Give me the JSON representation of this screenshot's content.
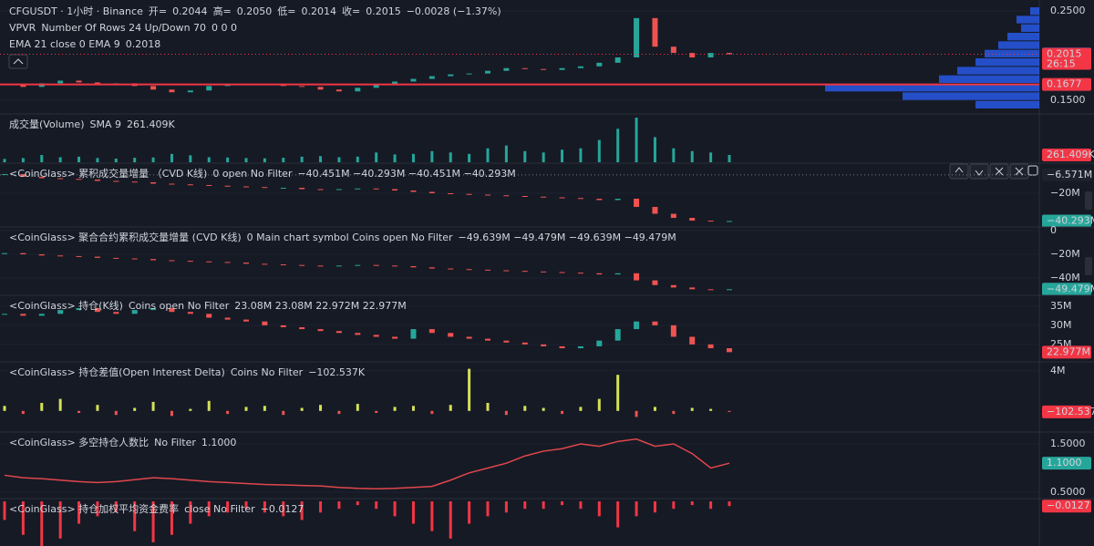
{
  "panes": [
    {
      "type": "candles",
      "ylim": [
        0.1378,
        0.2602
      ],
      "yticks": [
        {
          "value": 0.25,
          "label": "0.2500"
        },
        {
          "value": 0.15,
          "label": "0.1500"
        }
      ],
      "values": [
        0.168,
        0.165,
        0.169,
        0.172,
        0.17,
        0.168,
        0.169,
        0.166,
        0.162,
        0.159,
        0.161,
        0.166,
        0.168,
        0.167,
        0.168,
        0.166,
        0.165,
        0.162,
        0.16,
        0.164,
        0.168,
        0.171,
        0.174,
        0.177,
        0.179,
        0.18,
        0.183,
        0.186,
        0.185,
        0.184,
        0.186,
        0.188,
        0.192,
        0.198,
        0.242,
        0.21,
        0.203,
        0.198,
        0.203,
        0.2015
      ],
      "up_color": "#26a69a",
      "down_color": "#ef5350",
      "profile": [
        10,
        25,
        20,
        35,
        45,
        60,
        70,
        90,
        110,
        235,
        150,
        70
      ],
      "profile_color": "#2962ff",
      "legend": [
        [
          {
            "text": "CFGUSDT · 1小时 · Binance",
            "color": "#d1d4dc"
          },
          {
            "text": "开=",
            "color": "#d1d4dc"
          },
          {
            "text": "0.2044",
            "color": "#f23645"
          },
          {
            "text": "高=",
            "color": "#d1d4dc"
          },
          {
            "text": "0.2050",
            "color": "#f23645"
          },
          {
            "text": "低=",
            "color": "#d1d4dc"
          },
          {
            "text": "0.2014",
            "color": "#f23645"
          },
          {
            "text": "收=",
            "color": "#d1d4dc"
          },
          {
            "text": "0.2015",
            "color": "#f23645"
          },
          {
            "text": "−0.0028 (−1.37%)",
            "color": "#f23645"
          }
        ],
        [
          {
            "text": "VPVR",
            "color": "#d1d4dc"
          },
          {
            "text": "Number Of Rows 24 Up/Down 70",
            "color": "#9598a1"
          },
          {
            "text": "0 0 0",
            "color": "#d1d4dc"
          }
        ],
        [
          {
            "text": "EMA 21 close 0 EMA 9",
            "color": "#d1d4dc"
          },
          {
            "text": "0.2018",
            "color": "#2962ff"
          }
        ]
      ],
      "value_boxes": [
        {
          "value": 0.2018,
          "label": "0.2018",
          "color": "#2962ff"
        },
        {
          "value": 0.2015,
          "label": "0.2015",
          "sublabel": "26:15",
          "color": "#f23645",
          "line": "dotted"
        },
        {
          "value": 0.1677,
          "label": "0.1677",
          "color": "#f23645",
          "line": "solid"
        }
      ]
    },
    {
      "type": "bars",
      "ylim": [
        0,
        1700
      ],
      "yticks": [],
      "color": "#26a69a",
      "values": [
        120,
        150,
        260,
        180,
        200,
        150,
        130,
        160,
        170,
        300,
        250,
        180,
        170,
        150,
        140,
        160,
        200,
        220,
        180,
        200,
        350,
        280,
        300,
        400,
        350,
        300,
        500,
        600,
        400,
        350,
        450,
        500,
        800,
        1200,
        1600,
        900,
        500,
        400,
        350,
        261.409
      ],
      "legend": [
        [
          {
            "text": "成交量(Volume)",
            "color": "#d1d4dc"
          },
          {
            "text": "SMA 9",
            "color": "#9598a1"
          },
          {
            "text": "261.409K",
            "color": "#f23645"
          }
        ]
      ],
      "value_boxes": [
        {
          "value": 261.409,
          "label": "261.409K",
          "color": "#f23645"
        }
      ]
    },
    {
      "type": "candles",
      "ylim": [
        -45.3,
        1.3
      ],
      "yticks": [
        {
          "value": -20,
          "label": "−20M"
        }
      ],
      "up_color": "#26a69a",
      "down_color": "#ef5350",
      "values": [
        -6,
        -8,
        -9,
        -9.5,
        -10,
        -11,
        -11.5,
        -12,
        -13,
        -13.5,
        -14,
        -14.5,
        -15,
        -15.5,
        -16,
        -16,
        -17,
        -17.5,
        -17,
        -16.5,
        -17,
        -18,
        -19,
        -20,
        -20.5,
        -21,
        -21.5,
        -22,
        -22.5,
        -23,
        -23.5,
        -24,
        -25,
        -24,
        -30,
        -35,
        -38,
        -40,
        -40.5,
        -40.293
      ],
      "legend": [
        [
          {
            "text": "<CoinGlass> 累积成交量增量 （CVD K线)",
            "color": "#d1d4dc"
          },
          {
            "text": "0 open No Filter",
            "color": "#9598a1"
          },
          {
            "text": "−40.451M −40.293M −40.451M −40.293M",
            "color": "#26a69a"
          }
        ]
      ],
      "value_boxes": [
        {
          "value": -6.571,
          "label": "−6.571M",
          "color": "#1e222d",
          "line": "dotted"
        },
        {
          "value": -40.293,
          "label": "−40.293M",
          "color": "#26a69a"
        }
      ]
    },
    {
      "type": "candles",
      "ylim": [
        -55.4,
        2.3
      ],
      "yticks": [
        0,
        {
          "value": -20,
          "label": "−20M"
        },
        {
          "value": -40,
          "label": "−40M"
        }
      ],
      "up_color": "#26a69a",
      "down_color": "#ef5350",
      "values": [
        -19,
        -20,
        -21,
        -21.5,
        -22,
        -23,
        -23.5,
        -24,
        -25,
        -25.5,
        -26,
        -26.5,
        -27,
        -28,
        -28.5,
        -29,
        -29.5,
        -30,
        -29.5,
        -29,
        -29.5,
        -30,
        -31,
        -32,
        -32.5,
        -33,
        -33.5,
        -34,
        -34.5,
        -35,
        -35.5,
        -36,
        -37,
        -36,
        -42,
        -46,
        -48,
        -49.5,
        -49.8,
        -49.479
      ],
      "legend": [
        [
          {
            "text": "<CoinGlass> 聚合合约累积成交量增量 (CVD K线)",
            "color": "#d1d4dc"
          },
          {
            "text": "0 Main chart symbol Coins open No Filter",
            "color": "#9598a1"
          },
          {
            "text": "−49.639M −49.479M −49.639M −49.479M",
            "color": "#26a69a"
          }
        ]
      ],
      "value_boxes": [
        {
          "value": -49.479,
          "label": "−49.479M",
          "color": "#26a69a"
        }
      ]
    },
    {
      "type": "candles",
      "ylim": [
        20.2,
        37.6
      ],
      "yticks": [
        {
          "value": 35,
          "label": "35M"
        },
        {
          "value": 30,
          "label": "30M"
        },
        {
          "value": 25,
          "label": "25M"
        }
      ],
      "up_color": "#26a69a",
      "down_color": "#ef5350",
      "values": [
        33,
        32.5,
        33,
        34,
        34.5,
        33.5,
        33,
        34,
        34.5,
        33.5,
        33,
        32,
        31.5,
        31,
        30,
        29.5,
        29,
        28.5,
        28,
        27.5,
        27,
        26.5,
        29,
        28,
        27,
        26.5,
        26,
        25.5,
        25,
        24.5,
        24,
        24.5,
        26,
        29,
        31,
        30,
        27,
        25,
        24,
        22.977
      ],
      "legend": [
        [
          {
            "text": "<CoinGlass> 持仓(K线)",
            "color": "#d1d4dc"
          },
          {
            "text": "Coins open No Filter",
            "color": "#9598a1"
          },
          {
            "text": "23.08M 23.08M 22.972M 22.977M",
            "color": "#f23645"
          }
        ]
      ],
      "value_boxes": [
        {
          "value": 22.977,
          "label": "22.977M",
          "color": "#f23645"
        }
      ]
    },
    {
      "type": "bars",
      "ylim": [
        -2.2,
        4.8
      ],
      "yticks": [
        {
          "value": 4,
          "label": "4M"
        }
      ],
      "up_color": "#d4e157",
      "down_color": "#ef5350",
      "values": [
        0.5,
        -0.3,
        0.8,
        1.2,
        -0.2,
        0.6,
        -0.4,
        0.3,
        0.9,
        -0.5,
        0.2,
        1.0,
        -0.3,
        0.4,
        0.5,
        -0.4,
        0.3,
        0.6,
        -0.3,
        0.7,
        -0.2,
        0.4,
        0.5,
        -0.3,
        0.6,
        4.2,
        0.8,
        -0.4,
        0.5,
        0.3,
        -0.3,
        0.4,
        1.2,
        3.6,
        -0.6,
        0.4,
        -0.3,
        0.3,
        0.2,
        -0.102537
      ],
      "legend": [
        [
          {
            "text": "<CoinGlass> 持仓差值(Open Interest Delta)",
            "color": "#d1d4dc"
          },
          {
            "text": "Coins No Filter",
            "color": "#9598a1"
          },
          {
            "text": "−102.537K",
            "color": "#f23645"
          }
        ]
      ],
      "value_boxes": [
        {
          "value": -0.102537,
          "label": "−102.537K",
          "color": "#f23645"
        }
      ]
    },
    {
      "type": "line",
      "ylim": [
        0.349,
        1.726
      ],
      "yticks": [
        {
          "value": 1.5,
          "label": "1.5000"
        },
        {
          "value": 0.5,
          "label": "0.5000"
        }
      ],
      "color": "#e0474c",
      "values": [
        0.85,
        0.8,
        0.78,
        0.75,
        0.72,
        0.7,
        0.72,
        0.76,
        0.8,
        0.78,
        0.75,
        0.72,
        0.7,
        0.68,
        0.66,
        0.65,
        0.64,
        0.63,
        0.6,
        0.58,
        0.57,
        0.58,
        0.6,
        0.62,
        0.75,
        0.9,
        1.0,
        1.1,
        1.25,
        1.35,
        1.4,
        1.5,
        1.45,
        1.55,
        1.6,
        1.45,
        1.5,
        1.3,
        1.0,
        1.1
      ],
      "legend": [
        [
          {
            "text": "<CoinGlass> 多空持仓人数比",
            "color": "#d1d4dc"
          },
          {
            "text": "No Filter",
            "color": "#9598a1"
          },
          {
            "text": "1.1000",
            "color": "#26a69a"
          }
        ]
      ],
      "value_boxes": [
        {
          "value": 1.1,
          "label": "1.1000",
          "color": "#26a69a"
        }
      ]
    },
    {
      "type": "bars",
      "ylim": [
        -0.12,
        0.005
      ],
      "yticks": [],
      "up_color": "#26a69a",
      "down_color": "#f23645",
      "values": [
        -0.05,
        -0.09,
        -0.12,
        -0.1,
        -0.06,
        -0.04,
        -0.03,
        -0.08,
        -0.11,
        -0.09,
        -0.06,
        -0.04,
        -0.03,
        -0.02,
        -0.03,
        -0.04,
        -0.05,
        -0.03,
        -0.02,
        -0.01,
        -0.02,
        -0.04,
        -0.06,
        -0.08,
        -0.1,
        -0.06,
        -0.04,
        -0.03,
        -0.02,
        -0.02,
        -0.01,
        -0.02,
        -0.04,
        -0.07,
        -0.04,
        -0.03,
        -0.02,
        -0.01,
        -0.02,
        -0.0127
      ],
      "legend": [
        [
          {
            "text": "<CoinGlass> 持仓加权平均资金费率",
            "color": "#d1d4dc"
          },
          {
            "text": "close No Filter",
            "color": "#9598a1"
          },
          {
            "text": "−0.0127",
            "color": "#f23645"
          }
        ]
      ],
      "value_boxes": [
        {
          "value": -0.0127,
          "label": "−0.0127",
          "color": "#f23645"
        }
      ]
    }
  ]
}
